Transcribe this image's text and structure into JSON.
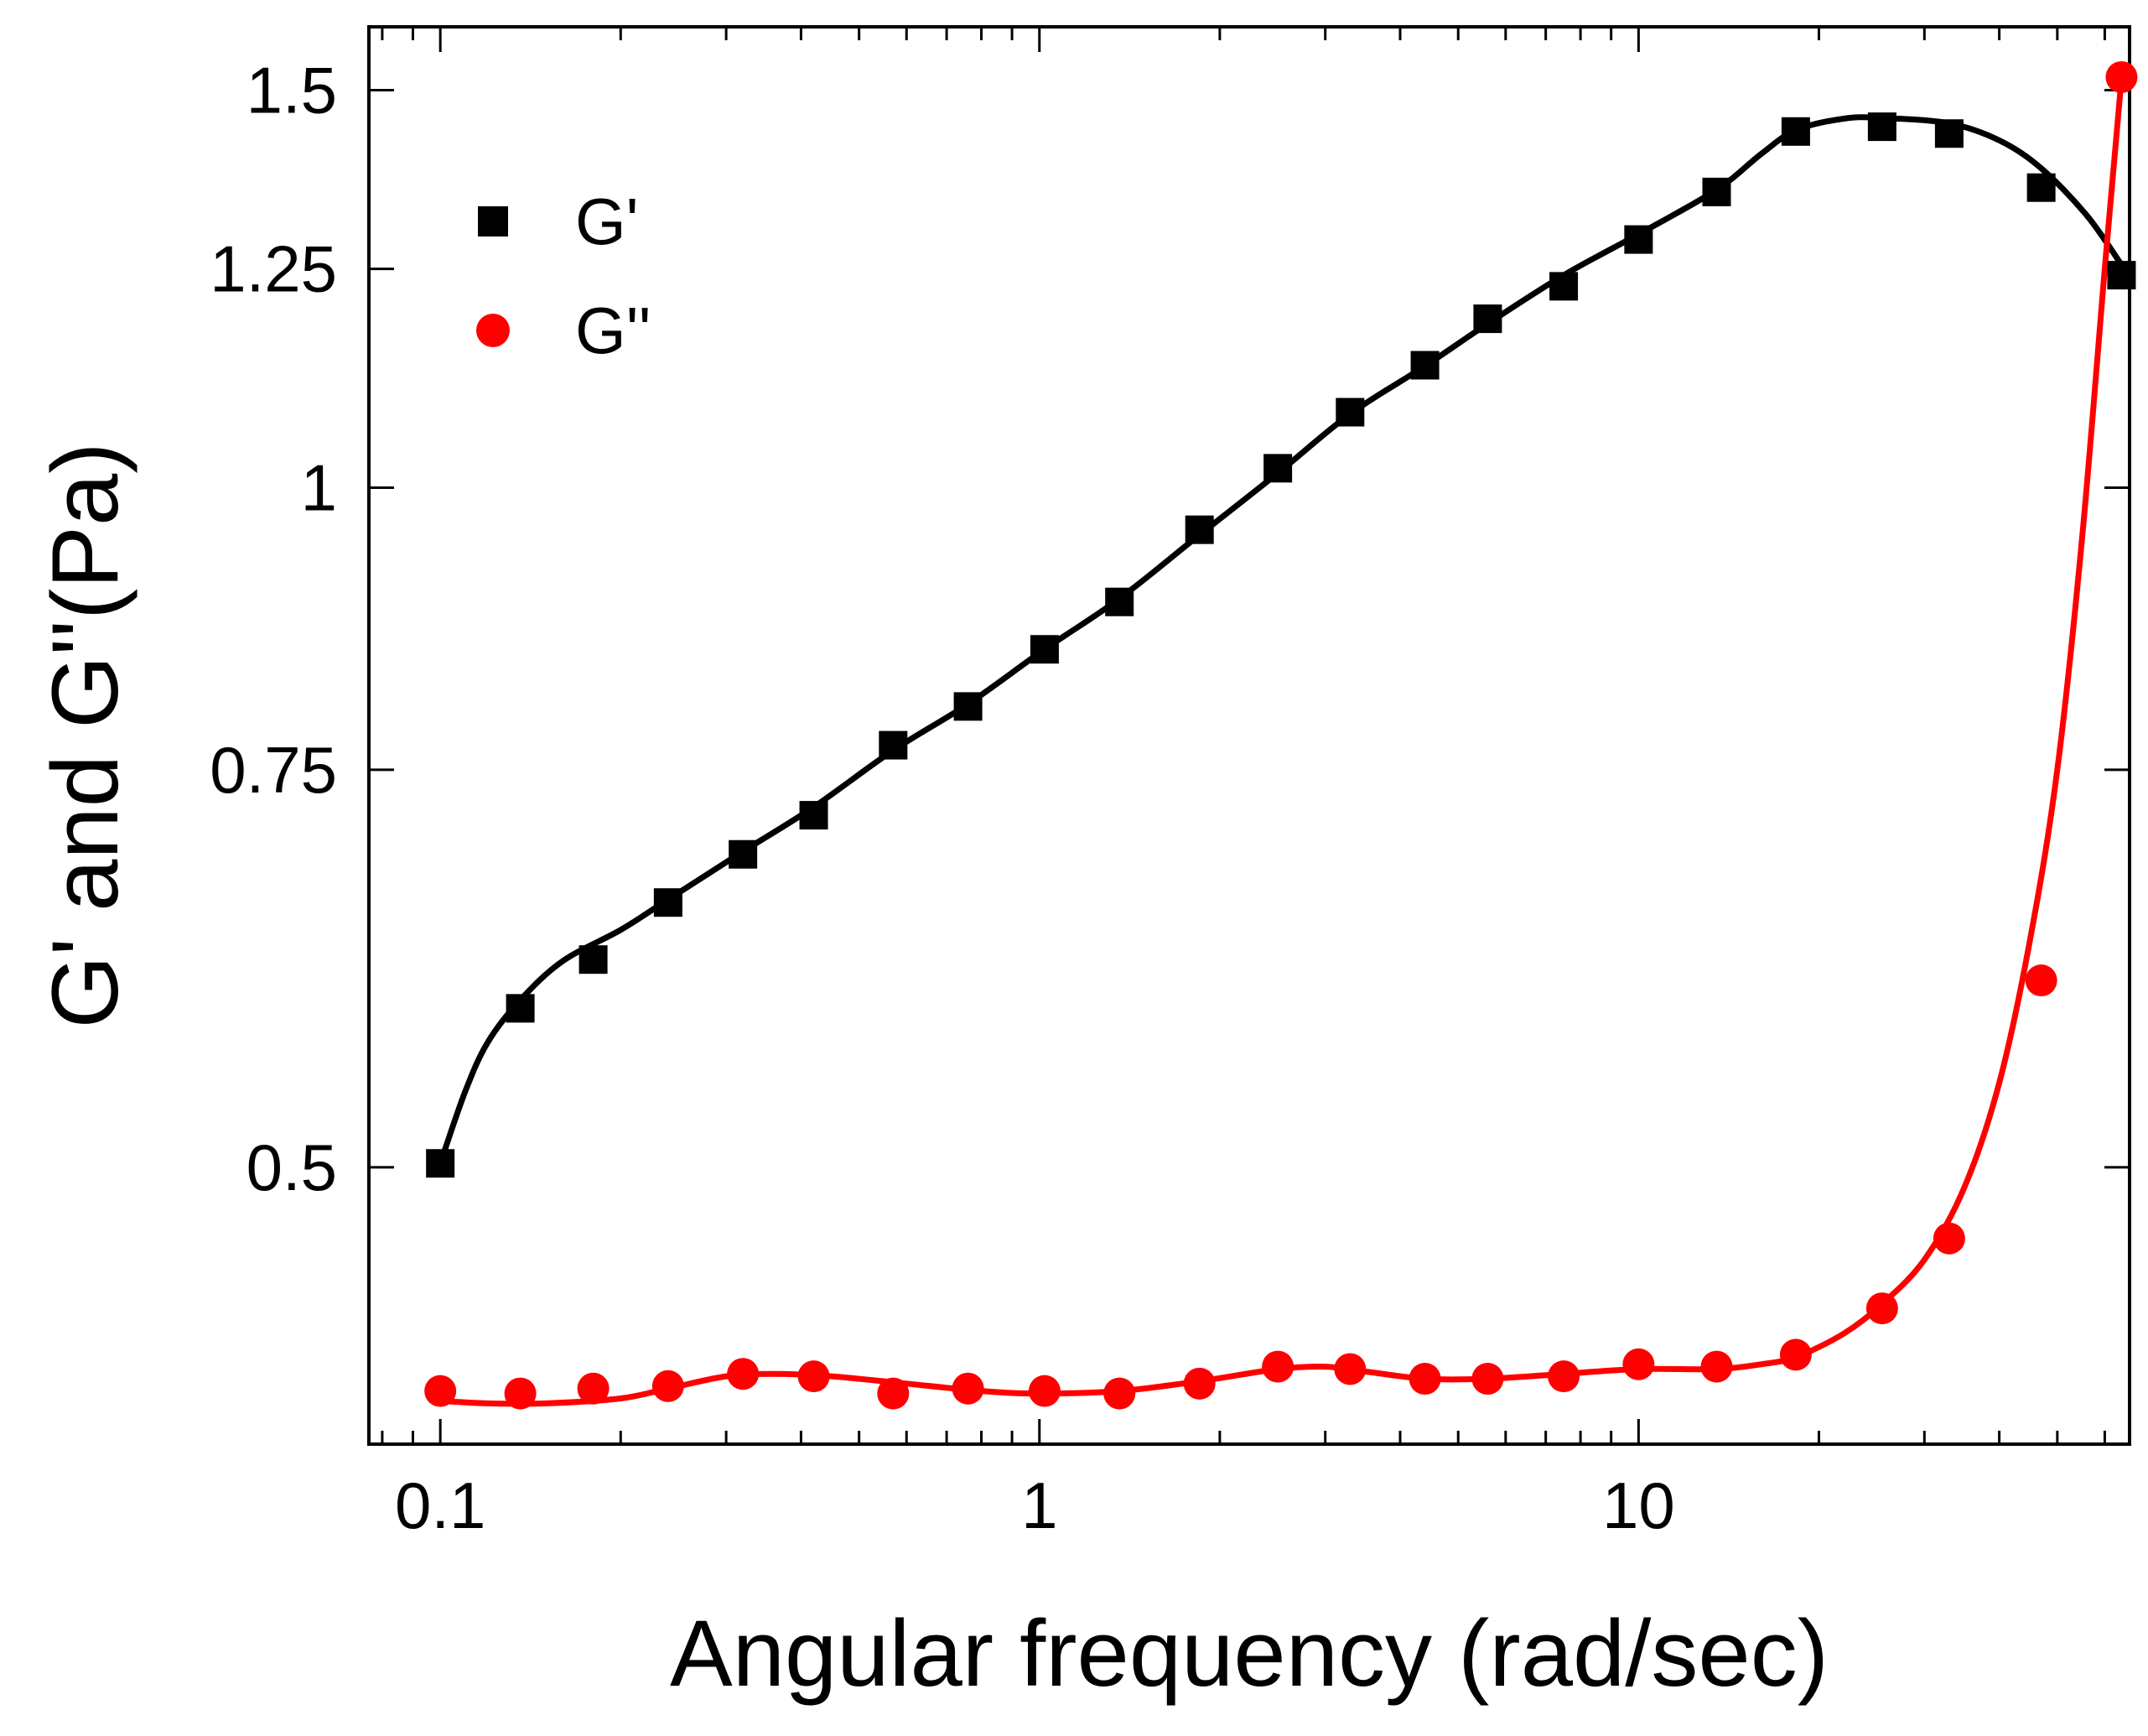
{
  "chart_data": {
    "type": "scatter",
    "title": "",
    "xlabel": "Angular frequency (rad/sec)",
    "ylabel": "G' and G''(Pa)",
    "xscale": "log",
    "yscale": "log",
    "xlim": [
      0.076,
      66
    ],
    "ylim": [
      0.377,
      1.6
    ],
    "xticks": [
      {
        "value": 0.1,
        "label": "0.1"
      },
      {
        "value": 1,
        "label": "1"
      },
      {
        "value": 10,
        "label": "10"
      }
    ],
    "yticks": [
      {
        "value": 0.5,
        "label": "0.5"
      },
      {
        "value": 0.75,
        "label": "0.75"
      },
      {
        "value": 1,
        "label": "1"
      },
      {
        "value": 1.25,
        "label": "1.25"
      },
      {
        "value": 1.5,
        "label": "1.5"
      }
    ],
    "legend_position": "top-left",
    "series": [
      {
        "name": "G'",
        "marker": "square",
        "color": "#000000",
        "x": [
          0.1,
          0.136,
          0.18,
          0.24,
          0.32,
          0.42,
          0.57,
          0.76,
          1.02,
          1.36,
          1.85,
          2.5,
          3.3,
          4.4,
          5.6,
          7.5,
          10,
          13.5,
          18.3,
          25.5,
          33,
          47,
          64
        ],
        "y": [
          0.502,
          0.588,
          0.618,
          0.655,
          0.688,
          0.716,
          0.769,
          0.8,
          0.848,
          0.89,
          0.958,
          1.02,
          1.08,
          1.133,
          1.188,
          1.228,
          1.288,
          1.352,
          1.438,
          1.445,
          1.435,
          1.358,
          1.242
        ]
      },
      {
        "name": "G''",
        "marker": "circle",
        "color": "#ff0000",
        "x": [
          0.1,
          0.136,
          0.18,
          0.24,
          0.32,
          0.42,
          0.57,
          0.76,
          1.02,
          1.36,
          1.85,
          2.5,
          3.3,
          4.4,
          5.6,
          7.5,
          10,
          13.5,
          18.3,
          25.5,
          33,
          47,
          64
        ],
        "y": [
          0.398,
          0.397,
          0.399,
          0.4,
          0.405,
          0.404,
          0.397,
          0.399,
          0.398,
          0.397,
          0.401,
          0.408,
          0.407,
          0.403,
          0.403,
          0.404,
          0.409,
          0.408,
          0.413,
          0.433,
          0.465,
          0.605,
          1.52
        ]
      }
    ],
    "fits": [
      {
        "name": "G' fit",
        "color": "#000000",
        "x": [
          0.1,
          0.11,
          0.12,
          0.136,
          0.16,
          0.2,
          0.24,
          0.32,
          0.42,
          0.57,
          0.76,
          1.02,
          1.36,
          1.85,
          2.5,
          3.3,
          4.4,
          5.6,
          7.5,
          10,
          13.5,
          16,
          18.3,
          22,
          25.5,
          33,
          40,
          47,
          56,
          64
        ],
        "y": [
          0.502,
          0.54,
          0.568,
          0.593,
          0.617,
          0.637,
          0.657,
          0.69,
          0.722,
          0.765,
          0.802,
          0.848,
          0.893,
          0.953,
          1.015,
          1.078,
          1.132,
          1.182,
          1.242,
          1.295,
          1.355,
          1.405,
          1.44,
          1.457,
          1.458,
          1.45,
          1.425,
          1.385,
          1.32,
          1.255
        ]
      },
      {
        "name": "G'' fit",
        "color": "#ff0000",
        "x": [
          0.1,
          0.12,
          0.15,
          0.2,
          0.24,
          0.3,
          0.36,
          0.45,
          0.6,
          0.8,
          1.0,
          1.36,
          1.85,
          2.5,
          3.0,
          3.5,
          4.4,
          5.6,
          7.5,
          10,
          13.5,
          16,
          18.3,
          22,
          25.5,
          30,
          35,
          40,
          45,
          50,
          55,
          60,
          64
        ],
        "y": [
          0.394,
          0.393,
          0.393,
          0.395,
          0.399,
          0.404,
          0.405,
          0.404,
          0.401,
          0.398,
          0.397,
          0.398,
          0.402,
          0.407,
          0.408,
          0.406,
          0.403,
          0.403,
          0.405,
          0.407,
          0.407,
          0.409,
          0.412,
          0.422,
          0.435,
          0.455,
          0.49,
          0.545,
          0.63,
          0.75,
          0.95,
          1.25,
          1.52
        ]
      }
    ]
  }
}
